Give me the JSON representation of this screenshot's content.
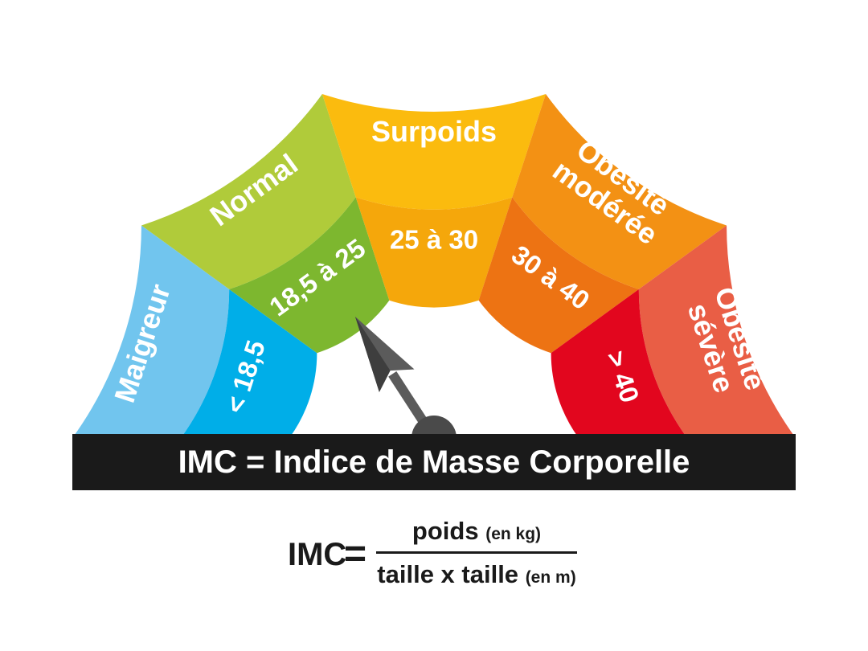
{
  "gauge": {
    "categories": [
      {
        "name": "Maigreur",
        "name_lines": [
          "Maigreur"
        ],
        "range": "< 18,5",
        "outer_color": "#71c5ee",
        "inner_color": "#00aee8"
      },
      {
        "name": "Normal",
        "name_lines": [
          "Normal"
        ],
        "range": "18,5 à 25",
        "outer_color": "#b0cb3a",
        "inner_color": "#7db72f"
      },
      {
        "name": "Surpoids",
        "name_lines": [
          "Surpoids"
        ],
        "range": "25 à 30",
        "outer_color": "#fbbb0e",
        "inner_color": "#f5a70b"
      },
      {
        "name": "Obésité modérée",
        "name_lines": [
          "Obésité",
          "modérée"
        ],
        "range": "30 à 40",
        "outer_color": "#f39114",
        "inner_color": "#ed7313"
      },
      {
        "name": "Obésité sévère",
        "name_lines": [
          "Obésité",
          "sévère"
        ],
        "range": "> 40",
        "outer_color": "#e95e45",
        "inner_color": "#e2061e"
      }
    ],
    "needle_category": "Normal",
    "needle_color": "#5b5b5b"
  },
  "title_bar": {
    "text": "IMC = Indice de Masse Corporelle"
  },
  "formula": {
    "lhs": "IMC",
    "equals": "=",
    "numerator": "poids",
    "numerator_unit": "(en kg)",
    "denominator": "taille x taille",
    "denominator_unit": "(en m)"
  }
}
